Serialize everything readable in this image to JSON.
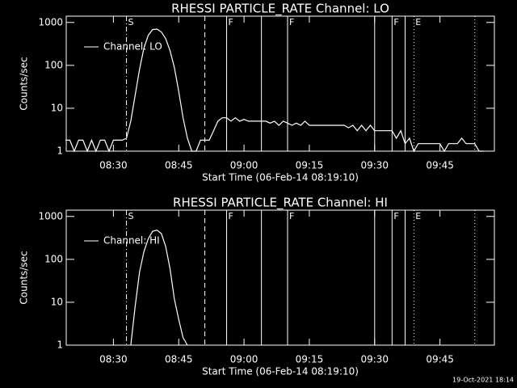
{
  "chart_data": [
    {
      "type": "line",
      "title": "RHESSI PARTICLE_RATE Channel: LO",
      "x_label": "Start Time (06-Feb-14 08:19:10)",
      "y_label": "Counts/sec",
      "log_y": true,
      "xlim": [
        "08:19:10",
        "09:57:30"
      ],
      "ylim": [
        1,
        1400
      ],
      "xticks": [
        "08:30",
        "08:45",
        "09:00",
        "09:15",
        "09:30",
        "09:45"
      ],
      "yticks": [
        1,
        10,
        100,
        1000
      ],
      "legend": "upper left",
      "x": [
        "08:19",
        "08:20",
        "08:21",
        "08:22",
        "08:23",
        "08:24",
        "08:25",
        "08:26",
        "08:27",
        "08:28",
        "08:29",
        "08:30",
        "08:31",
        "08:32",
        "08:33",
        "08:34",
        "08:35",
        "08:36",
        "08:37",
        "08:38",
        "08:39",
        "08:40",
        "08:41",
        "08:42",
        "08:43",
        "08:44",
        "08:45",
        "08:46",
        "08:47",
        "08:48",
        "08:49",
        "08:50",
        "08:51",
        "08:52",
        "08:53",
        "08:54",
        "08:55",
        "08:56",
        "08:57",
        "08:58",
        "08:59",
        "09:00",
        "09:01",
        "09:02",
        "09:03",
        "09:04",
        "09:05",
        "09:06",
        "09:07",
        "09:08",
        "09:09",
        "09:10",
        "09:11",
        "09:12",
        "09:13",
        "09:14",
        "09:15",
        "09:16",
        "09:17",
        "09:18",
        "09:19",
        "09:20",
        "09:21",
        "09:22",
        "09:23",
        "09:24",
        "09:25",
        "09:26",
        "09:27",
        "09:28",
        "09:29",
        "09:30",
        "09:31",
        "09:32",
        "09:33",
        "09:34",
        "09:35",
        "09:36",
        "09:37",
        "09:38",
        "09:39",
        "09:40",
        "09:41",
        "09:42",
        "09:43",
        "09:44",
        "09:45",
        "09:46",
        "09:47",
        "09:48",
        "09:49",
        "09:50",
        "09:51",
        "09:52",
        "09:53",
        "09:54",
        "09:55"
      ],
      "series": [
        {
          "name": "Channel: LO",
          "color": "#ffffff",
          "values": [
            1.8,
            1.8,
            1,
            1.8,
            1.8,
            1,
            1.8,
            1,
            1.8,
            1.8,
            1,
            1.8,
            1.8,
            1.8,
            2,
            5,
            20,
            80,
            250,
            500,
            680,
            700,
            600,
            420,
            220,
            90,
            25,
            6,
            2,
            1,
            1,
            1.8,
            1.8,
            1.8,
            3,
            5,
            6,
            6,
            5,
            6,
            5,
            5.5,
            5,
            5,
            5,
            5,
            5,
            4.5,
            5,
            4,
            5,
            4.5,
            4,
            4.5,
            4,
            5,
            4,
            4,
            4,
            4,
            4,
            4,
            4,
            4,
            4,
            3.5,
            4,
            3,
            4,
            3,
            4,
            3,
            3,
            3,
            3,
            3,
            2,
            3,
            1.5,
            2,
            1,
            1.5,
            1.5,
            1.5,
            1.5,
            1.5,
            1.5,
            1,
            1.5,
            1.5,
            1.5,
            2,
            1.5,
            1.5,
            1.5,
            1,
            1
          ]
        }
      ],
      "markers": [
        {
          "x": "08:33",
          "style": "dashdot",
          "label": "S"
        },
        {
          "x": "08:51",
          "style": "dashed"
        },
        {
          "x": "08:56",
          "style": "solid",
          "label": "F"
        },
        {
          "x": "09:04",
          "style": "solid"
        },
        {
          "x": "09:10",
          "style": "solid",
          "label": "F"
        },
        {
          "x": "09:30",
          "style": "solid"
        },
        {
          "x": "09:34",
          "style": "solid",
          "label": "F"
        },
        {
          "x": "09:37",
          "style": "solid"
        },
        {
          "x": "09:39",
          "style": "dotted",
          "label": "E"
        },
        {
          "x": "09:53",
          "style": "dotted"
        }
      ]
    },
    {
      "type": "line",
      "title": "RHESSI PARTICLE_RATE Channel: HI",
      "x_label": "Start Time (06-Feb-14 08:19:10)",
      "y_label": "Counts/sec",
      "log_y": true,
      "xlim": [
        "08:19:10",
        "09:57:30"
      ],
      "ylim": [
        1,
        1400
      ],
      "xticks": [
        "08:30",
        "08:45",
        "09:00",
        "09:15",
        "09:30",
        "09:45"
      ],
      "yticks": [
        1,
        10,
        100,
        1000
      ],
      "legend": "upper left",
      "x": [
        "08:34",
        "08:35",
        "08:36",
        "08:37",
        "08:38",
        "08:39",
        "08:40",
        "08:41",
        "08:42",
        "08:43",
        "08:44",
        "08:45",
        "08:46",
        "08:47"
      ],
      "series": [
        {
          "name": "Channel: HI",
          "color": "#ffffff",
          "values": [
            1,
            8,
            50,
            150,
            300,
            450,
            480,
            400,
            200,
            60,
            12,
            4,
            1.5,
            1
          ]
        }
      ],
      "markers": [
        {
          "x": "08:33",
          "style": "dashdot",
          "label": "S"
        },
        {
          "x": "08:51",
          "style": "dashed"
        },
        {
          "x": "08:56",
          "style": "solid",
          "label": "F"
        },
        {
          "x": "09:04",
          "style": "solid"
        },
        {
          "x": "09:10",
          "style": "solid",
          "label": "F"
        },
        {
          "x": "09:30",
          "style": "solid"
        },
        {
          "x": "09:34",
          "style": "solid",
          "label": "F"
        },
        {
          "x": "09:37",
          "style": "solid"
        },
        {
          "x": "09:39",
          "style": "dotted",
          "label": "E"
        },
        {
          "x": "09:53",
          "style": "dotted"
        }
      ]
    }
  ],
  "footer": "19-Oct-2021 18:14"
}
